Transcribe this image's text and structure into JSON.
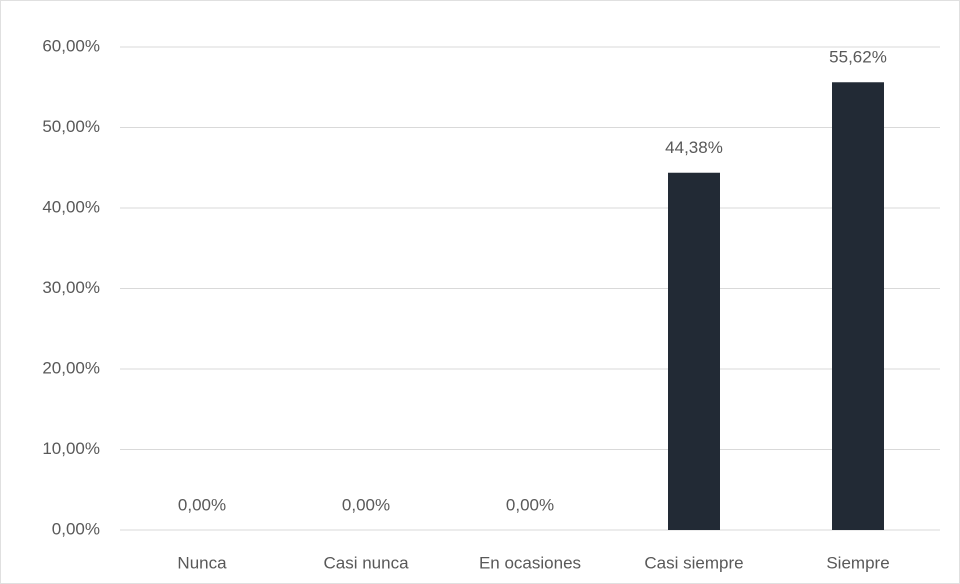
{
  "chart_data": {
    "type": "bar",
    "categories": [
      "Nunca",
      "Casi nunca",
      "En ocasiones",
      "Casi siempre",
      "Siempre"
    ],
    "values": [
      0,
      0,
      0,
      44.38,
      55.62
    ],
    "value_labels": [
      "0,00%",
      "0,00%",
      "0,00%",
      "44,38%",
      "55,62%"
    ],
    "color": "#222a35",
    "ylim": [
      0,
      60
    ],
    "yticks": [
      {
        "value": 0,
        "label": "0,00%"
      },
      {
        "value": 10,
        "label": "10,00%"
      },
      {
        "value": 20,
        "label": "20,00%"
      },
      {
        "value": 30,
        "label": "30,00%"
      },
      {
        "value": 40,
        "label": "40,00%"
      },
      {
        "value": 50,
        "label": "50,00%"
      },
      {
        "value": 60,
        "label": "60,00%"
      }
    ],
    "grid": true
  }
}
